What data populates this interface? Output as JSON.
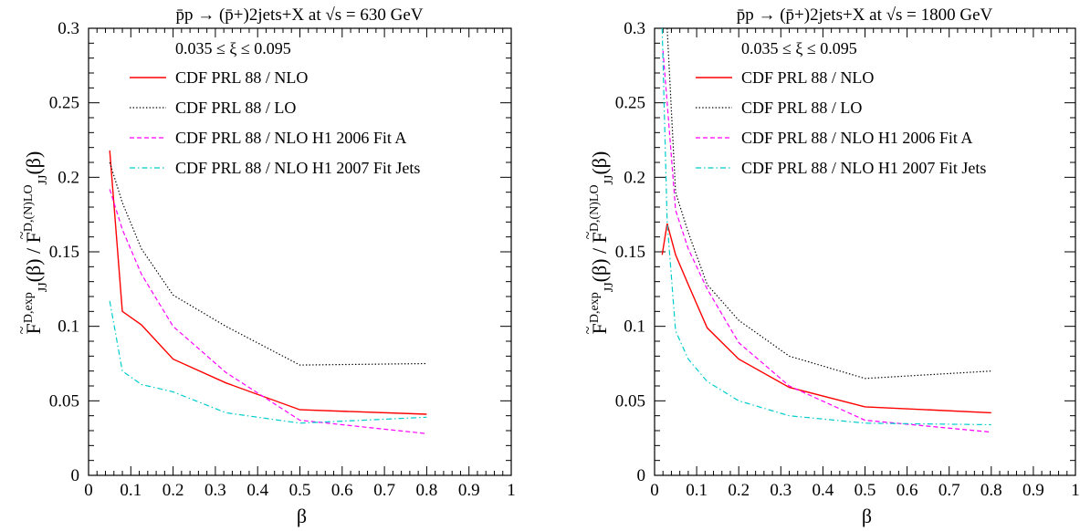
{
  "chart_data": [
    {
      "type": "line",
      "title": "p̄p → (p̄+)2jets+X  at √s = 630 GeV",
      "xlabel": "β",
      "ylabel": {
        "prefix": "F",
        "sup1": "D,exp",
        "sub": "JJ",
        "mid": "(β) / F",
        "sup2": "D,(N)LO",
        "suffix": "(β)"
      },
      "xlim": [
        0,
        1
      ],
      "ylim": [
        0,
        0.3
      ],
      "xticks": [
        "0",
        "0.1",
        "0.2",
        "0.3",
        "0.4",
        "0.5",
        "0.6",
        "0.7",
        "0.8",
        "0.9",
        "1"
      ],
      "yticks": [
        "0",
        "0.05",
        "0.1",
        "0.15",
        "0.2",
        "0.25",
        "0.3"
      ],
      "annotation": "0.035 ≤ ξ ≤ 0.095",
      "legend_position": "top-right",
      "series": [
        {
          "name": "CDF PRL 88 / NLO",
          "color": "#ff0000",
          "dash": "solid",
          "x": [
            0.05,
            0.08,
            0.125,
            0.2,
            0.325,
            0.5,
            0.8
          ],
          "y": [
            0.218,
            0.11,
            0.101,
            0.078,
            0.062,
            0.044,
            0.041
          ]
        },
        {
          "name": "CDF PRL 88 / LO",
          "color": "#000000",
          "dash": "dotted",
          "x": [
            0.05,
            0.08,
            0.125,
            0.2,
            0.325,
            0.5,
            0.8
          ],
          "y": [
            0.21,
            0.183,
            0.152,
            0.121,
            0.1,
            0.074,
            0.075
          ]
        },
        {
          "name": "CDF PRL 88 / NLO H1 2006 Fit A",
          "color": "#ff00ff",
          "dash": "dashed",
          "x": [
            0.05,
            0.08,
            0.125,
            0.2,
            0.325,
            0.5,
            0.8
          ],
          "y": [
            0.192,
            0.165,
            0.135,
            0.1,
            0.069,
            0.037,
            0.028
          ]
        },
        {
          "name": "CDF PRL 88 / NLO H1 2007 Fit Jets",
          "color": "#00cccc",
          "dash": "dashdot",
          "x": [
            0.05,
            0.08,
            0.125,
            0.2,
            0.325,
            0.5,
            0.8
          ],
          "y": [
            0.117,
            0.07,
            0.061,
            0.056,
            0.042,
            0.035,
            0.039
          ]
        }
      ]
    },
    {
      "type": "line",
      "title": "p̄p → (p̄+)2jets+X  at √s = 1800 GeV",
      "xlabel": "β",
      "ylabel": {
        "prefix": "F",
        "sup1": "D,exp",
        "sub": "JJ",
        "mid": "(β) / F",
        "sup2": "D,(N)LO",
        "suffix": "(β)"
      },
      "xlim": [
        0,
        1
      ],
      "ylim": [
        0,
        0.3
      ],
      "xticks": [
        "0",
        "0.1",
        "0.2",
        "0.3",
        "0.4",
        "0.5",
        "0.6",
        "0.7",
        "0.8",
        "0.9",
        "1"
      ],
      "yticks": [
        "0",
        "0.05",
        "0.1",
        "0.15",
        "0.2",
        "0.25",
        "0.3"
      ],
      "annotation": "0.035 ≤ ξ ≤ 0.095",
      "legend_position": "top-right",
      "series": [
        {
          "name": "CDF PRL 88 / NLO",
          "color": "#ff0000",
          "dash": "solid",
          "x": [
            0.018,
            0.03,
            0.05,
            0.08,
            0.125,
            0.2,
            0.32,
            0.5,
            0.8
          ],
          "y": [
            0.148,
            0.169,
            0.148,
            0.128,
            0.099,
            0.078,
            0.059,
            0.046,
            0.042
          ]
        },
        {
          "name": "CDF PRL 88 / LO",
          "color": "#000000",
          "dash": "dotted",
          "x": [
            0.03,
            0.05,
            0.08,
            0.125,
            0.2,
            0.32,
            0.5,
            0.8
          ],
          "y": [
            0.3,
            0.19,
            0.163,
            0.128,
            0.104,
            0.08,
            0.065,
            0.07
          ]
        },
        {
          "name": "CDF PRL 88 / NLO H1 2006 Fit A",
          "color": "#ff00ff",
          "dash": "dashed",
          "x": [
            0.02,
            0.03,
            0.05,
            0.08,
            0.125,
            0.2,
            0.32,
            0.5,
            0.8
          ],
          "y": [
            0.285,
            0.25,
            0.178,
            0.152,
            0.125,
            0.089,
            0.06,
            0.037,
            0.029
          ]
        },
        {
          "name": "CDF PRL 88 / NLO H1 2007 Fit Jets",
          "color": "#00cccc",
          "dash": "dashdot",
          "x": [
            0.018,
            0.03,
            0.05,
            0.08,
            0.125,
            0.2,
            0.32,
            0.5,
            0.8
          ],
          "y": [
            0.3,
            0.17,
            0.097,
            0.078,
            0.063,
            0.05,
            0.04,
            0.035,
            0.034
          ]
        }
      ]
    }
  ]
}
